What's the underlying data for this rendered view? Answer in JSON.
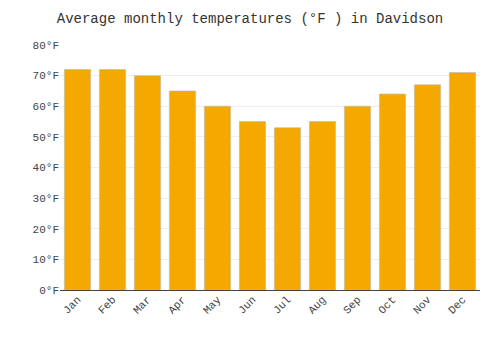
{
  "chart_data": {
    "type": "bar",
    "title": "Average monthly temperatures (°F ) in Davidson",
    "categories": [
      "Jan",
      "Feb",
      "Mar",
      "Apr",
      "May",
      "Jun",
      "Jul",
      "Aug",
      "Sep",
      "Oct",
      "Nov",
      "Dec"
    ],
    "values": [
      72,
      72,
      70,
      65,
      60,
      55,
      53,
      55,
      60,
      64,
      67,
      71
    ],
    "color": "#F5A800",
    "ylim": [
      0,
      80
    ],
    "yticks": [
      {
        "value": 0,
        "label": "0°F"
      },
      {
        "value": 10,
        "label": "10°F"
      },
      {
        "value": 20,
        "label": "20°F"
      },
      {
        "value": 30,
        "label": "30°F"
      },
      {
        "value": 40,
        "label": "40°F"
      },
      {
        "value": 50,
        "label": "50°F"
      },
      {
        "value": 60,
        "label": "60°F"
      },
      {
        "value": 70,
        "label": "70°F"
      },
      {
        "value": 80,
        "label": "80°F"
      }
    ],
    "grid": true
  }
}
